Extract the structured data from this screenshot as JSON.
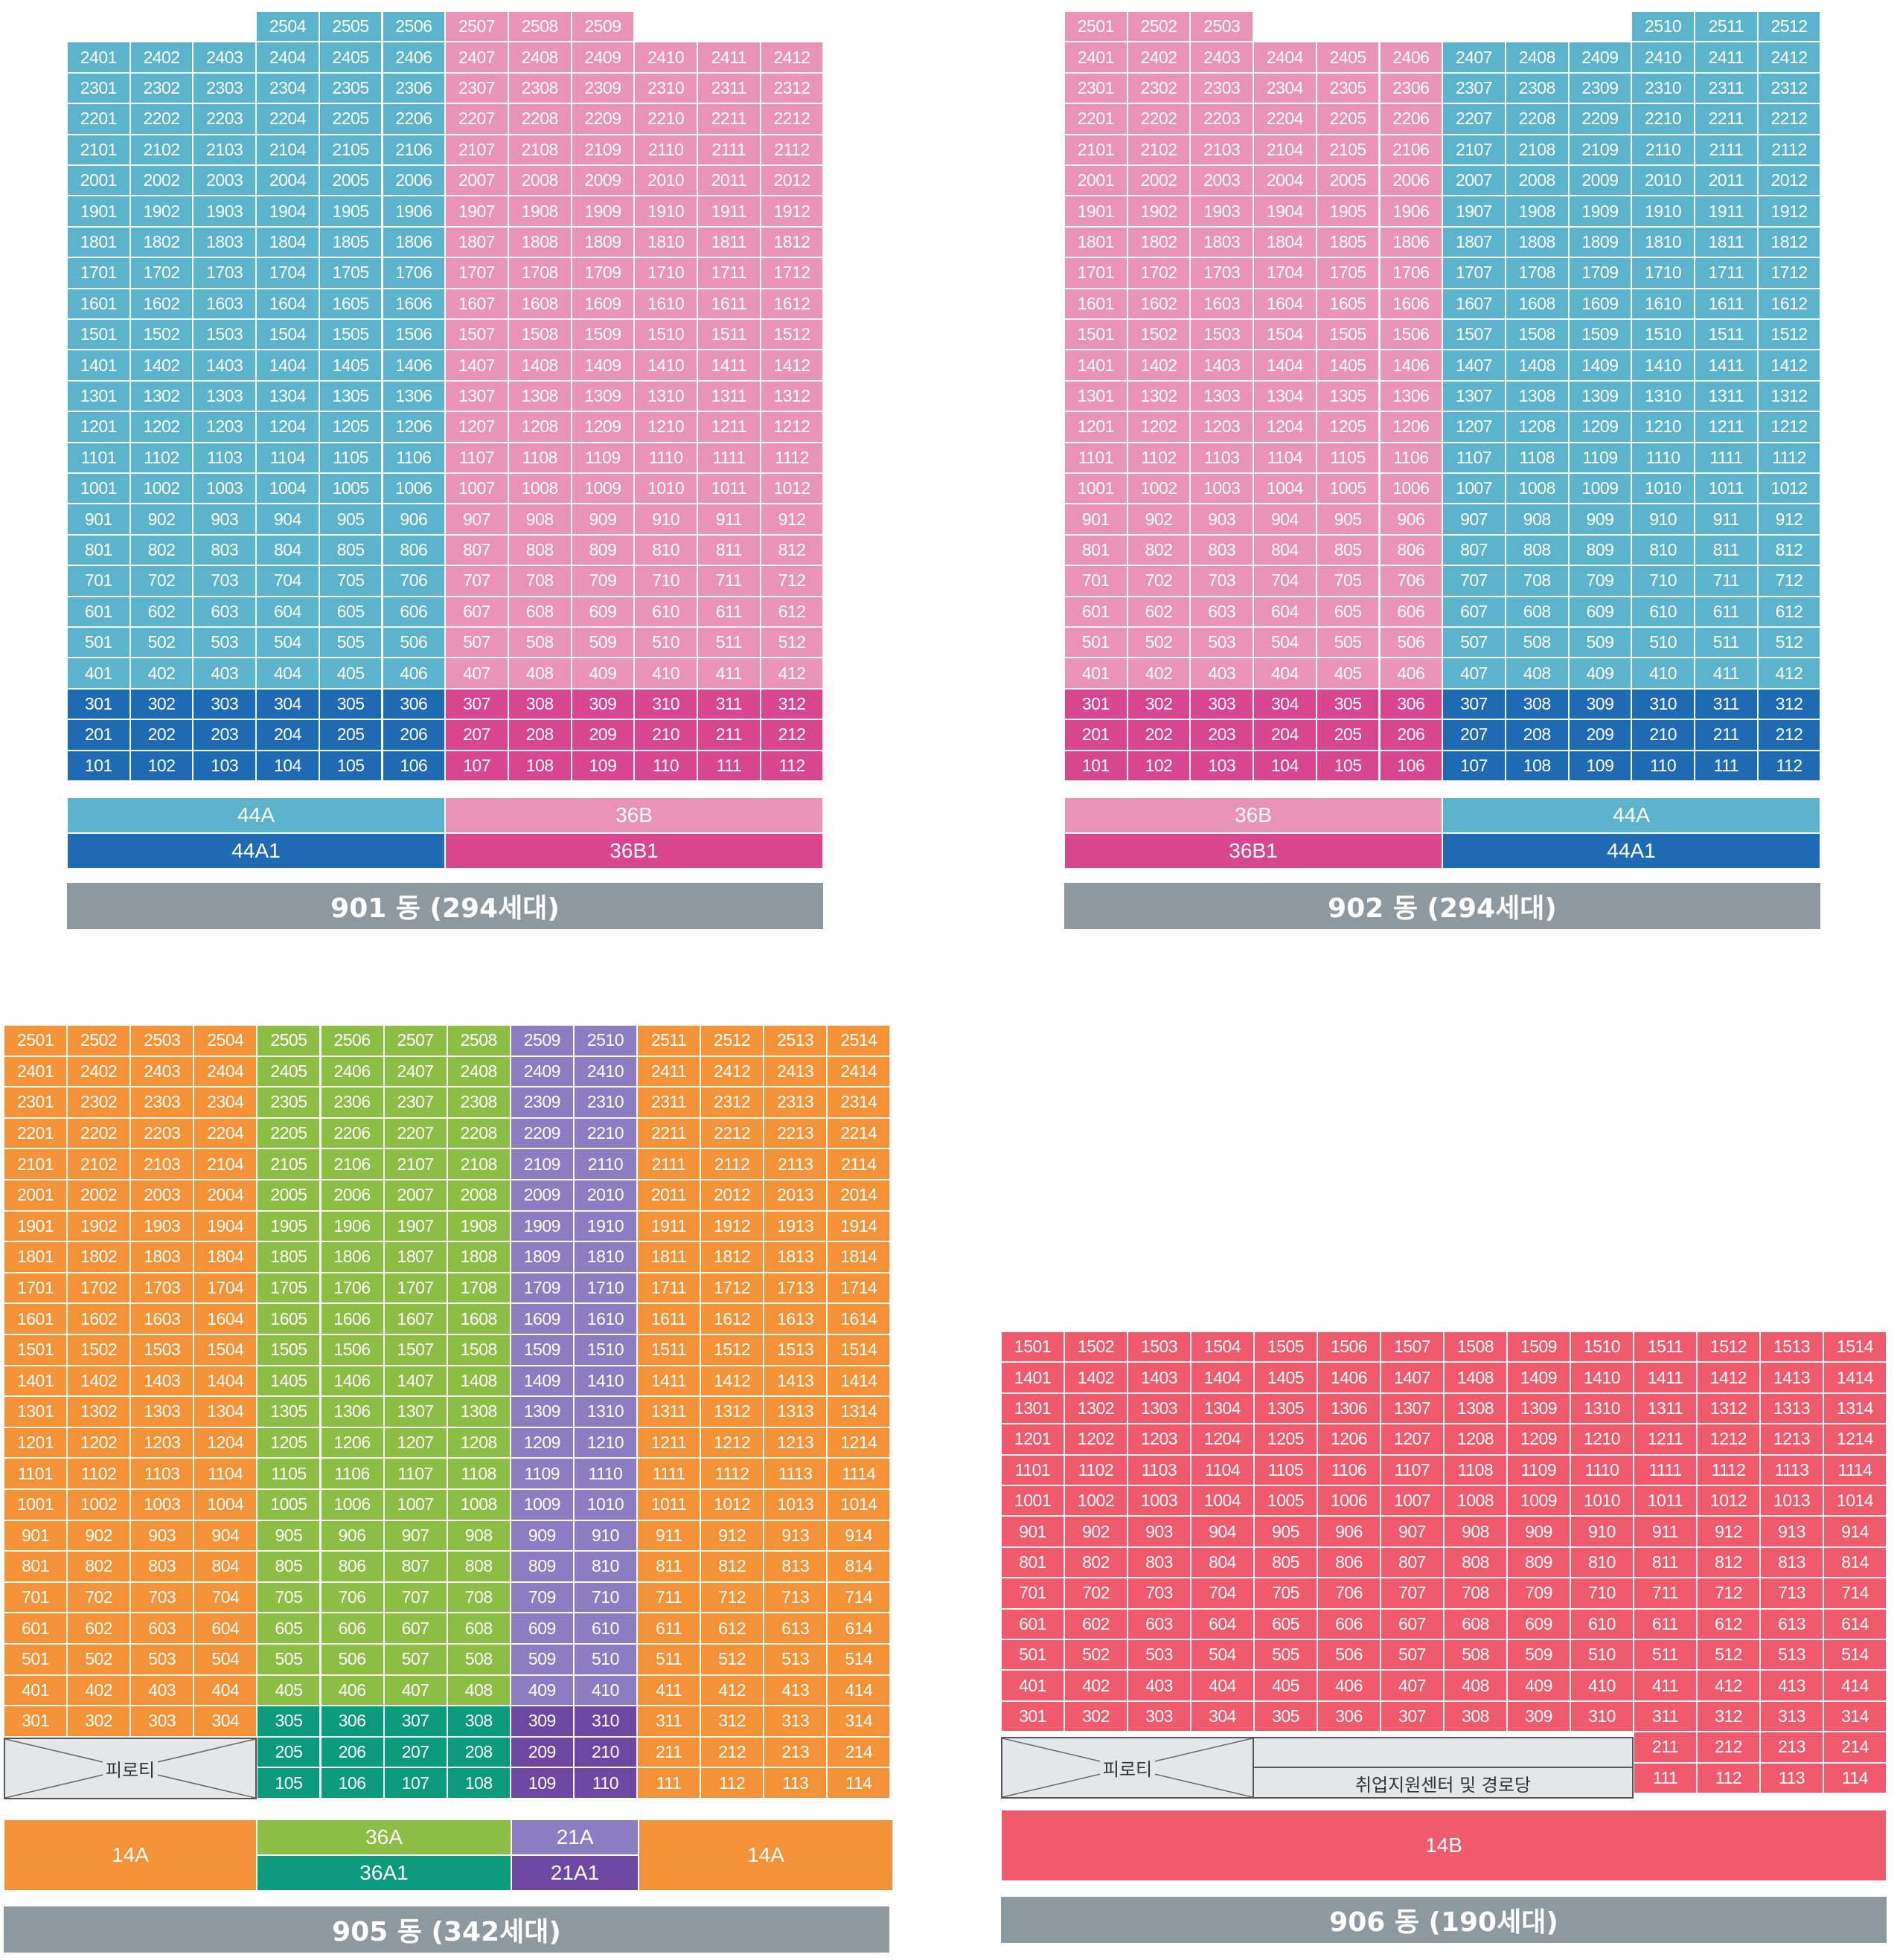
{
  "colors": {
    "lightblue": "#5bb3cc",
    "darkblue": "#1f6bb3",
    "pink": "#e993b6",
    "magenta": "#d94690",
    "orange": "#f39236",
    "green": "#8cbd45",
    "teal": "#0b9a7c",
    "purple": "#8a7dc1",
    "darkpurple": "#6e47a2",
    "red": "#ef5a6c",
    "title": "#8d989f"
  },
  "buildings": {
    "b901": {
      "title": "901 동 (294세대)",
      "legend_top": [
        "44A",
        "36B"
      ],
      "legend_bottom": [
        "44A1",
        "36B1"
      ]
    },
    "b902": {
      "title": "902 동 (294세대)",
      "legend_top": [
        "36B",
        "44A"
      ],
      "legend_bottom": [
        "36B1",
        "44A1"
      ]
    },
    "b905": {
      "title": "905 동 (342세대)",
      "piloti_label": "피로티",
      "legend": {
        "left": "14A",
        "mid_top": "36A",
        "mid_bottom": "36A1",
        "purple_top": "21A",
        "purple_bottom": "21A1",
        "right": "14A"
      }
    },
    "b906": {
      "title": "906 동 (190세대)",
      "piloti_label": "피로티",
      "facility_label": "취업지원센터 및 경로당",
      "legend": "14B"
    }
  }
}
